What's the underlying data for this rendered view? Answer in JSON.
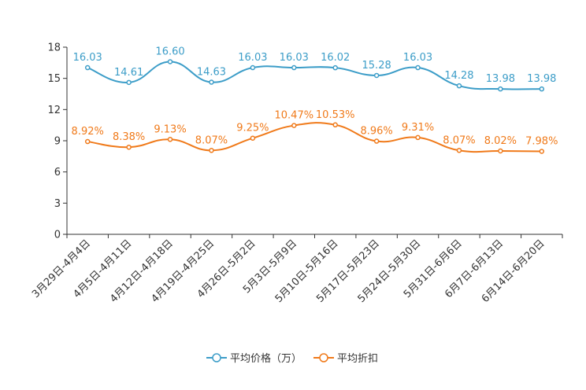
{
  "chart_data": {
    "type": "line",
    "categories": [
      "3月29日-4月4日",
      "4月5日-4月11日",
      "4月12日-4月18日",
      "4月19日-4月25日",
      "4月26日-5月2日",
      "5月3日-5月9日",
      "5月10日-5月16日",
      "5月17日-5月23日",
      "5月24日-5月30日",
      "5月31日-6月6日",
      "6月7日-6月13日",
      "6月14日-6月20日"
    ],
    "yticks": [
      "0",
      "3",
      "6",
      "9",
      "12",
      "15",
      "18"
    ],
    "ylim": [
      0,
      18
    ],
    "series": [
      {
        "name": "平均价格（万）",
        "color": "#3c9dc8",
        "values": [
          16.03,
          14.61,
          16.6,
          14.63,
          16.03,
          16.03,
          16.02,
          15.28,
          16.03,
          14.28,
          13.98,
          13.98
        ],
        "labels": [
          "16.03",
          "14.61",
          "16.60",
          "14.63",
          "16.03",
          "16.03",
          "16.02",
          "15.28",
          "16.03",
          "14.28",
          "13.98",
          "13.98"
        ]
      },
      {
        "name": "平均折扣",
        "color": "#f07a1a",
        "values": [
          8.92,
          8.38,
          9.13,
          8.07,
          9.25,
          10.47,
          10.53,
          8.96,
          9.31,
          8.07,
          8.02,
          7.98
        ],
        "labels": [
          "8.92%",
          "8.38%",
          "9.13%",
          "8.07%",
          "9.25%",
          "10.47%",
          "10.53%",
          "8.96%",
          "9.31%",
          "8.07%",
          "8.02%",
          "7.98%"
        ]
      }
    ],
    "legend": [
      "平均价格（万）",
      "平均折扣"
    ]
  }
}
